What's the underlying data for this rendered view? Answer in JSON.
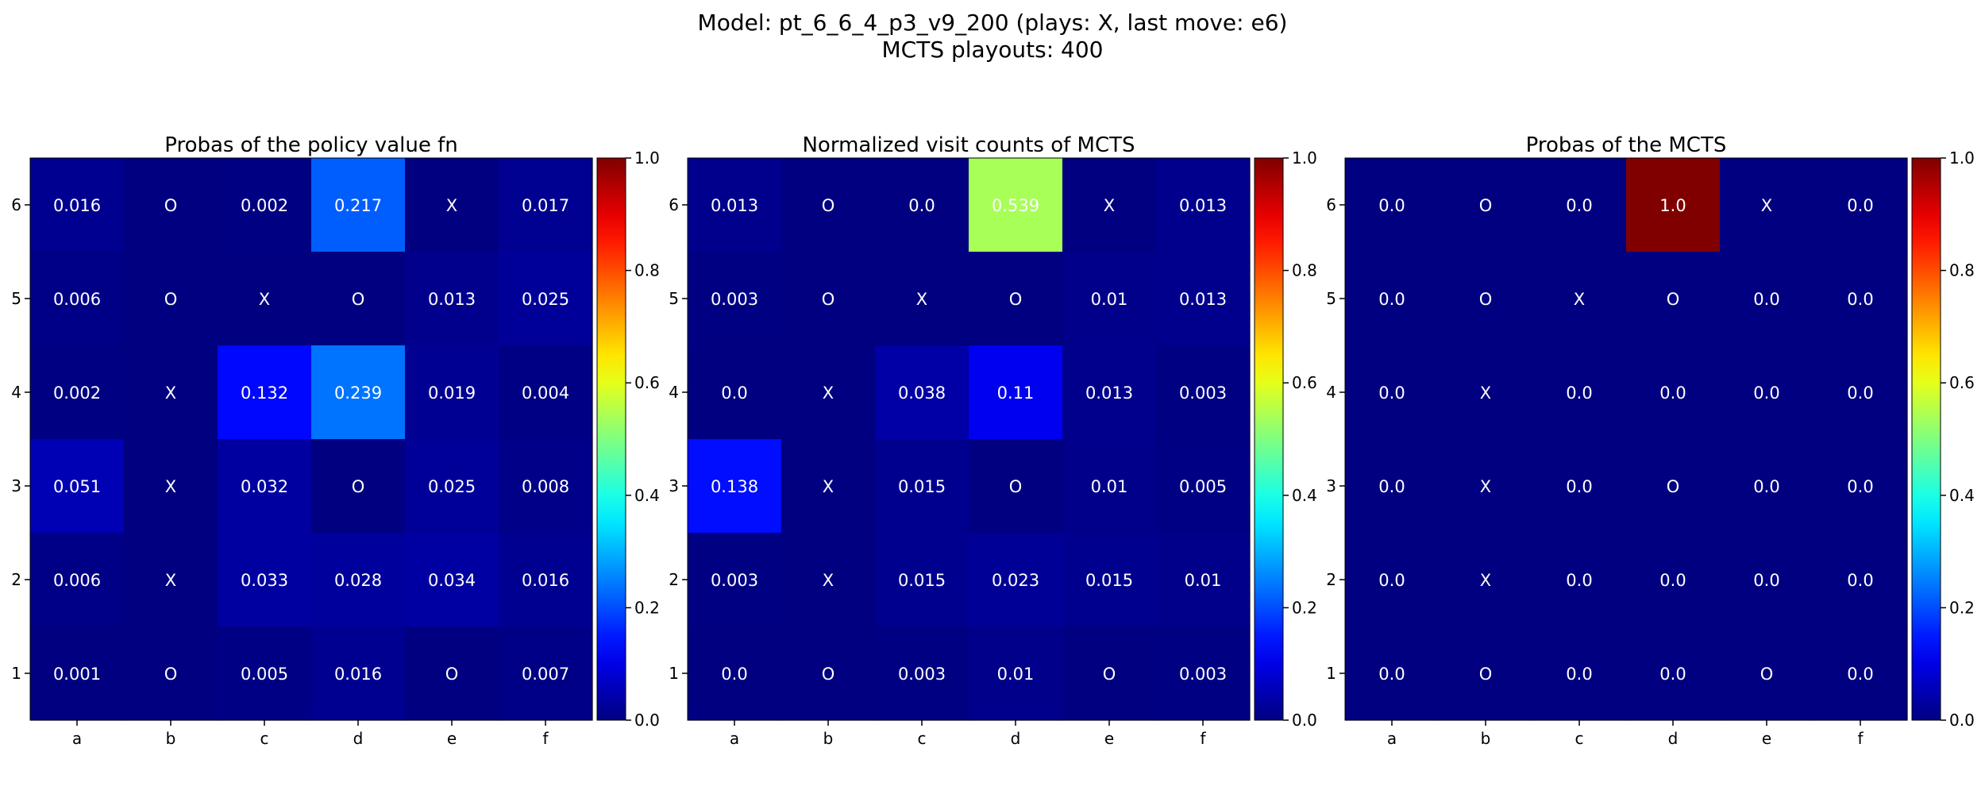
{
  "figure": {
    "title_line1": "Model: pt_6_6_4_p3_v9_200 (plays: X, last move: e6)",
    "title_line2": "MCTS playouts: 400"
  },
  "chart_data": [
    {
      "type": "heatmap",
      "title": "Probas of the policy value fn",
      "xlabel": "",
      "ylabel": "",
      "x_labels": [
        "a",
        "b",
        "c",
        "d",
        "e",
        "f"
      ],
      "y_labels": [
        "6",
        "5",
        "4",
        "3",
        "2",
        "1"
      ],
      "colormap": "jet",
      "vmin": 0.0,
      "vmax": 1.0,
      "colorbar_ticks": [
        "0.0",
        "0.2",
        "0.4",
        "0.6",
        "0.8",
        "1.0"
      ],
      "cells": [
        [
          "0.016",
          "O",
          "0.002",
          "0.217",
          "X",
          "0.017"
        ],
        [
          "0.006",
          "O",
          "X",
          "O",
          "0.013",
          "0.025"
        ],
        [
          "0.002",
          "X",
          "0.132",
          "0.239",
          "0.019",
          "0.004"
        ],
        [
          "0.051",
          "X",
          "0.032",
          "O",
          "0.025",
          "0.008"
        ],
        [
          "0.006",
          "X",
          "0.033",
          "0.028",
          "0.034",
          "0.016"
        ],
        [
          "0.001",
          "O",
          "0.005",
          "0.016",
          "O",
          "0.007"
        ]
      ]
    },
    {
      "type": "heatmap",
      "title": "Normalized visit counts of MCTS",
      "xlabel": "",
      "ylabel": "",
      "x_labels": [
        "a",
        "b",
        "c",
        "d",
        "e",
        "f"
      ],
      "y_labels": [
        "6",
        "5",
        "4",
        "3",
        "2",
        "1"
      ],
      "colormap": "jet",
      "vmin": 0.0,
      "vmax": 1.0,
      "colorbar_ticks": [
        "0.0",
        "0.2",
        "0.4",
        "0.6",
        "0.8",
        "1.0"
      ],
      "cells": [
        [
          "0.013",
          "O",
          "0.0",
          "0.539",
          "X",
          "0.013"
        ],
        [
          "0.003",
          "O",
          "X",
          "O",
          "0.01",
          "0.013"
        ],
        [
          "0.0",
          "X",
          "0.038",
          "0.11",
          "0.013",
          "0.003"
        ],
        [
          "0.138",
          "X",
          "0.015",
          "O",
          "0.01",
          "0.005"
        ],
        [
          "0.003",
          "X",
          "0.015",
          "0.023",
          "0.015",
          "0.01"
        ],
        [
          "0.0",
          "O",
          "0.003",
          "0.01",
          "O",
          "0.003"
        ]
      ]
    },
    {
      "type": "heatmap",
      "title": "Probas of the MCTS",
      "xlabel": "",
      "ylabel": "",
      "x_labels": [
        "a",
        "b",
        "c",
        "d",
        "e",
        "f"
      ],
      "y_labels": [
        "6",
        "5",
        "4",
        "3",
        "2",
        "1"
      ],
      "colormap": "jet",
      "vmin": 0.0,
      "vmax": 1.0,
      "colorbar_ticks": [
        "0.0",
        "0.2",
        "0.4",
        "0.6",
        "0.8",
        "1.0"
      ],
      "cells": [
        [
          "0.0",
          "O",
          "0.0",
          "1.0",
          "X",
          "0.0"
        ],
        [
          "0.0",
          "O",
          "X",
          "O",
          "0.0",
          "0.0"
        ],
        [
          "0.0",
          "X",
          "0.0",
          "0.0",
          "0.0",
          "0.0"
        ],
        [
          "0.0",
          "X",
          "0.0",
          "O",
          "0.0",
          "0.0"
        ],
        [
          "0.0",
          "X",
          "0.0",
          "0.0",
          "0.0",
          "0.0"
        ],
        [
          "0.0",
          "O",
          "0.0",
          "0.0",
          "O",
          "0.0"
        ]
      ]
    }
  ]
}
